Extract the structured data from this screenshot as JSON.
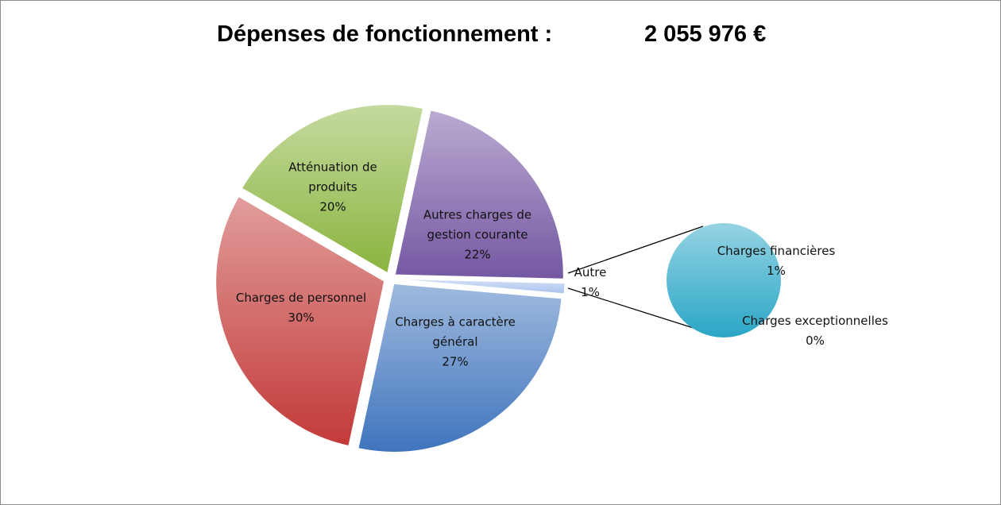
{
  "chart_data": {
    "type": "pie-of-pie",
    "title": "Dépenses de fonctionnement :",
    "title_amount": "2 055 976 €",
    "categories": [
      "Charges à caractère général",
      "Charges de personnel",
      "Atténuation de produits",
      "Autres charges de gestion courante",
      "Autre"
    ],
    "values": [
      27,
      30,
      20,
      22,
      1
    ],
    "value_labels": [
      "27%",
      "30%",
      "20%",
      "22%",
      "1%"
    ],
    "colors": [
      "#3f74bd",
      "#c23a38",
      "#8ab43e",
      "#7457a2",
      "#a8c2ee"
    ],
    "secondary": {
      "categories": [
        "Charges financières",
        "Charges exceptionnelles"
      ],
      "values": [
        1,
        0
      ],
      "value_labels": [
        "1%",
        "0%"
      ],
      "color": "#2aa6c6"
    }
  }
}
